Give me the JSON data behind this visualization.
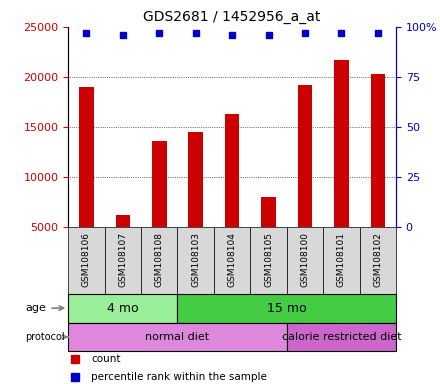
{
  "title": "GDS2681 / 1452956_a_at",
  "samples": [
    "GSM108106",
    "GSM108107",
    "GSM108108",
    "GSM108103",
    "GSM108104",
    "GSM108105",
    "GSM108100",
    "GSM108101",
    "GSM108102"
  ],
  "counts": [
    19000,
    6200,
    13600,
    14500,
    16300,
    8000,
    19200,
    21700,
    20300
  ],
  "percentile_ranks": [
    97,
    96,
    97,
    97,
    96,
    96,
    97,
    97,
    97
  ],
  "bar_color": "#cc0000",
  "dot_color": "#0000cc",
  "ylim_left": [
    5000,
    25000
  ],
  "yticks_left": [
    5000,
    10000,
    15000,
    20000,
    25000
  ],
  "ylim_right": [
    0,
    100
  ],
  "yticks_right": [
    0,
    25,
    50,
    75,
    100
  ],
  "age_groups": [
    {
      "label": "4 mo",
      "start": 0,
      "end": 3,
      "color": "#99ee99"
    },
    {
      "label": "15 mo",
      "start": 3,
      "end": 9,
      "color": "#44cc44"
    }
  ],
  "protocol_groups": [
    {
      "label": "normal diet",
      "start": 0,
      "end": 6,
      "color": "#dd88dd"
    },
    {
      "label": "calorie restricted diet",
      "start": 6,
      "end": 9,
      "color": "#cc66cc"
    }
  ],
  "legend_items": [
    {
      "color": "#cc0000",
      "label": "count"
    },
    {
      "color": "#0000cc",
      "label": "percentile rank within the sample"
    }
  ],
  "background_color": "#ffffff",
  "tick_label_bg": "#d8d8d8",
  "grid_lines": [
    10000,
    15000,
    20000
  ]
}
